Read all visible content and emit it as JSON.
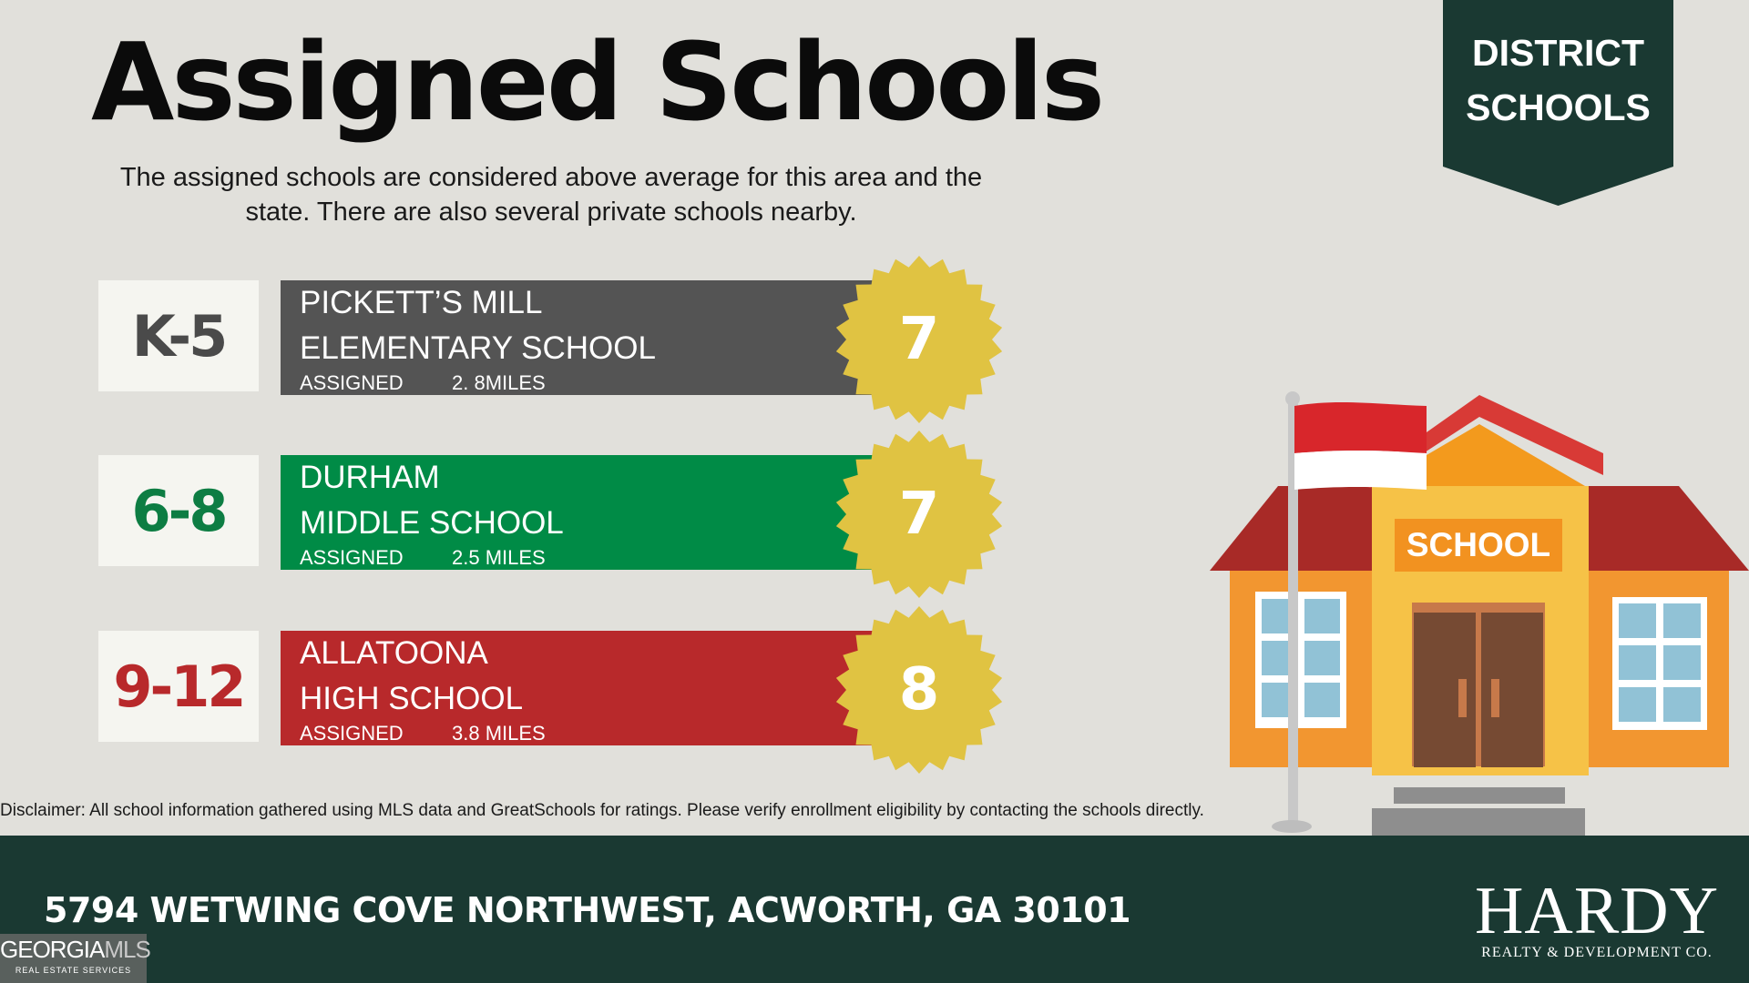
{
  "header": {
    "title": "Assigned Schools",
    "subtitle": "The assigned schools are considered above average for this area and the state. There are also several private schools nearby.",
    "badge_line1": "DISTRICT",
    "badge_line2": "SCHOOLS"
  },
  "schools": [
    {
      "grade": "K-5",
      "name_line1": "PICKETT’S MILL",
      "name_line2": "ELEMENTARY SCHOOL",
      "status": "ASSIGNED",
      "distance": "2. 8MILES",
      "rating": "7",
      "color": "#545454",
      "grade_color": "#4a4a4a"
    },
    {
      "grade": "6-8",
      "name_line1": "DURHAM",
      "name_line2": "MIDDLE SCHOOL",
      "status": "ASSIGNED",
      "distance": "2.5 MILES",
      "rating": "7",
      "color": "#008b46",
      "grade_color": "#0d7d43"
    },
    {
      "grade": "9-12",
      "name_line1": "ALLATOONA",
      "name_line2": "HIGH SCHOOL",
      "status": "ASSIGNED",
      "distance": "3.8 MILES",
      "rating": "8",
      "color": "#b8292b",
      "grade_color": "#b8292b"
    }
  ],
  "rating_seal_color": "#e0c342",
  "illustration": {
    "sign": "SCHOOL",
    "icon": "school-building-icon"
  },
  "disclaimer": "Disclaimer: All school information gathered using MLS data and GreatSchools for ratings. Please verify enrollment eligibility by contacting the schools directly.",
  "footer": {
    "address": "5794 WETWING COVE NORTHWEST, ACWORTH, GA 30101",
    "brand_name": "HARDY",
    "brand_tagline": "REALTY & DEVELOPMENT CO.",
    "mls_logo_main": "GEORGIA",
    "mls_logo_accent": "MLS",
    "mls_logo_sub": "REAL ESTATE SERVICES"
  },
  "colors": {
    "background": "#e1e0db",
    "footer": "#1a3932",
    "badge": "#1a3932"
  }
}
